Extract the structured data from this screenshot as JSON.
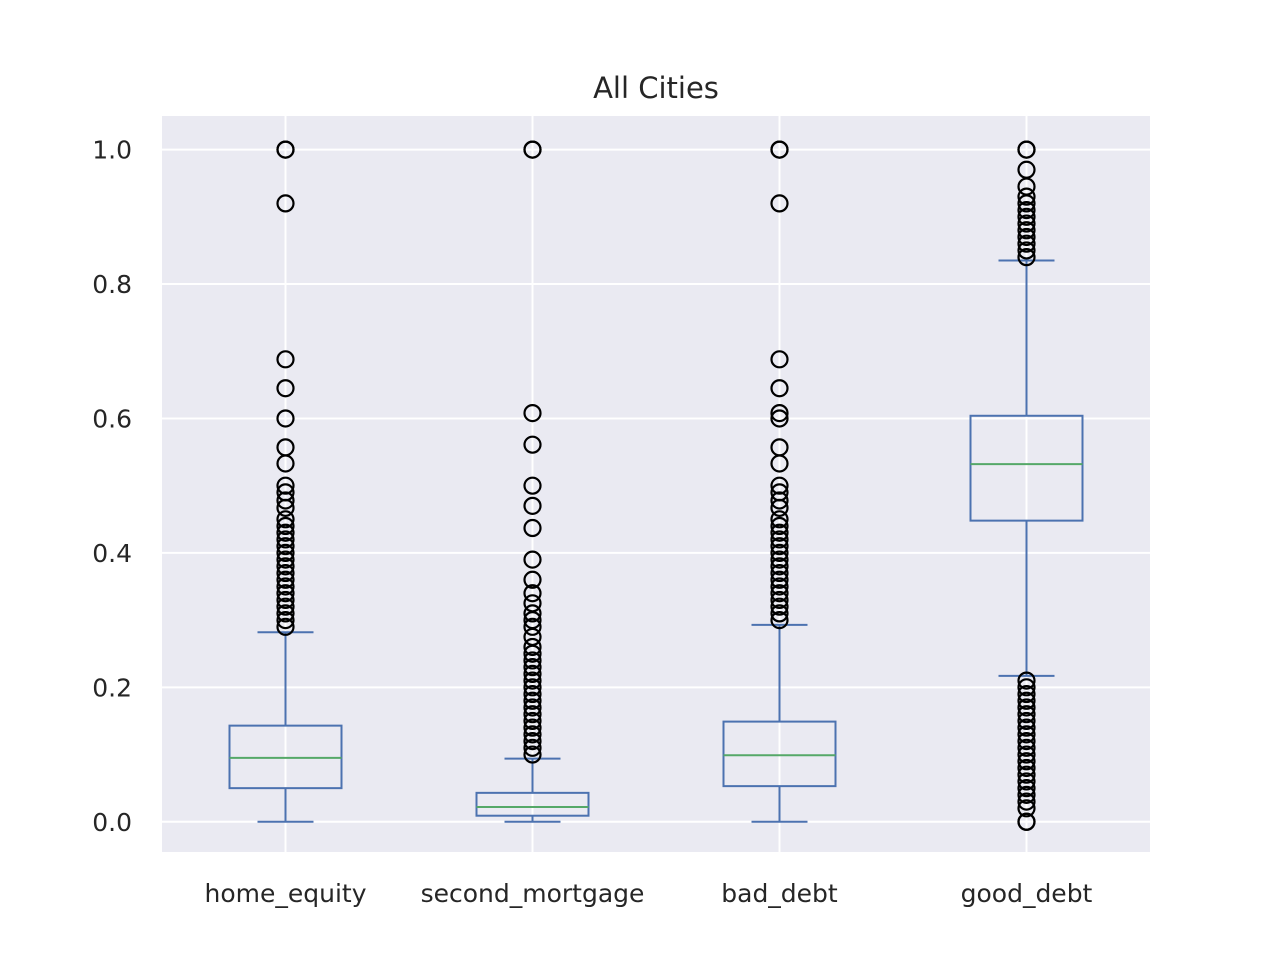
{
  "chart_data": {
    "type": "box",
    "title": "All Cities",
    "xlabel": "",
    "ylabel": "",
    "ylim": [
      -0.045,
      1.05
    ],
    "yticks": [
      0.0,
      0.2,
      0.4,
      0.6,
      0.8,
      1.0
    ],
    "ytick_labels": [
      "0.0",
      "0.2",
      "0.4",
      "0.6",
      "0.8",
      "1.0"
    ],
    "grid": true,
    "colors": {
      "background": "#eaeaf2",
      "grid": "#ffffff",
      "box": "#4c72b0",
      "median": "#55a868",
      "flier": "#000000",
      "text": "#262626"
    },
    "categories": [
      "home_equity",
      "second_mortgage",
      "bad_debt",
      "good_debt"
    ],
    "boxes": [
      {
        "name": "home_equity",
        "whisker_low": 0.0,
        "q1": 0.05,
        "median": 0.095,
        "q3": 0.143,
        "whisker_high": 0.282,
        "outliers": [
          1.0,
          1.0,
          0.92,
          0.688,
          0.645,
          0.6,
          0.557,
          0.533,
          0.5,
          0.49,
          0.478,
          0.467,
          0.45,
          0.44,
          0.43,
          0.42,
          0.41,
          0.4,
          0.39,
          0.38,
          0.37,
          0.36,
          0.35,
          0.34,
          0.33,
          0.32,
          0.31,
          0.3,
          0.29
        ]
      },
      {
        "name": "second_mortgage",
        "whisker_low": 0.0,
        "q1": 0.009,
        "median": 0.022,
        "q3": 0.043,
        "whisker_high": 0.094,
        "outliers": [
          1.0,
          1.0,
          0.608,
          0.561,
          0.5,
          0.47,
          0.437,
          0.39,
          0.36,
          0.34,
          0.325,
          0.31,
          0.3,
          0.29,
          0.275,
          0.26,
          0.25,
          0.24,
          0.23,
          0.22,
          0.21,
          0.2,
          0.19,
          0.18,
          0.17,
          0.16,
          0.15,
          0.14,
          0.13,
          0.12,
          0.11,
          0.1
        ]
      },
      {
        "name": "bad_debt",
        "whisker_low": 0.0,
        "q1": 0.053,
        "median": 0.099,
        "q3": 0.149,
        "whisker_high": 0.293,
        "outliers": [
          1.0,
          1.0,
          0.92,
          0.688,
          0.645,
          0.608,
          0.6,
          0.557,
          0.533,
          0.5,
          0.49,
          0.478,
          0.467,
          0.45,
          0.44,
          0.43,
          0.42,
          0.41,
          0.4,
          0.39,
          0.38,
          0.37,
          0.36,
          0.35,
          0.34,
          0.33,
          0.32,
          0.31,
          0.3
        ]
      },
      {
        "name": "good_debt",
        "whisker_low": 0.217,
        "q1": 0.448,
        "median": 0.532,
        "q3": 0.604,
        "whisker_high": 0.835,
        "outliers": [
          1.0,
          1.0,
          0.97,
          0.945,
          0.93,
          0.92,
          0.91,
          0.9,
          0.89,
          0.88,
          0.87,
          0.86,
          0.85,
          0.84,
          0.21,
          0.2,
          0.19,
          0.18,
          0.17,
          0.16,
          0.15,
          0.14,
          0.13,
          0.12,
          0.11,
          0.1,
          0.09,
          0.08,
          0.07,
          0.06,
          0.05,
          0.04,
          0.03,
          0.02,
          0.0,
          0.0
        ]
      }
    ]
  }
}
